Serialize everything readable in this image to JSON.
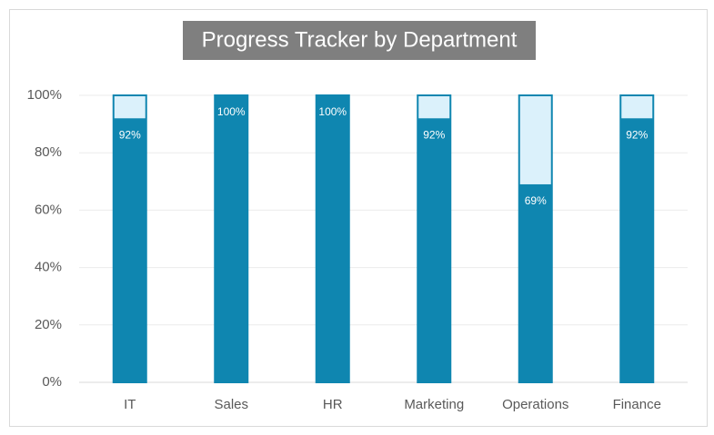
{
  "chart_data": {
    "type": "progress-bar",
    "title": "Progress Tracker by Department",
    "categories": [
      "IT",
      "Sales",
      "HR",
      "Marketing",
      "Operations",
      "Finance"
    ],
    "series": [
      {
        "color": "#dbf1fb",
        "border_color": "#0f86b0",
        "values": [
          100,
          100,
          100,
          100,
          100,
          100
        ]
      },
      {
        "color": "#0f86b0",
        "values": [
          92,
          100,
          100,
          92,
          69,
          92
        ],
        "value_labels": [
          "92%",
          "100%",
          "100%",
          "92%",
          "69%",
          "92%"
        ]
      }
    ],
    "ylim": [
      0,
      100
    ],
    "yticks": [
      {
        "value": 0,
        "label": "0%"
      },
      {
        "value": 20,
        "label": "20%"
      },
      {
        "value": 40,
        "label": "40%"
      },
      {
        "value": 60,
        "label": "60%"
      },
      {
        "value": 80,
        "label": "80%"
      },
      {
        "value": 100,
        "label": "100%"
      }
    ],
    "grid": true
  }
}
